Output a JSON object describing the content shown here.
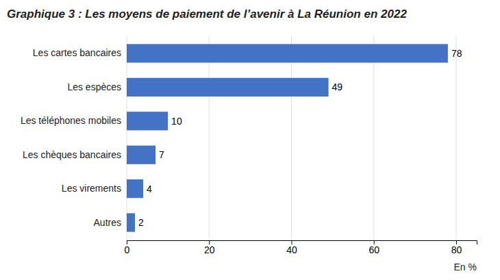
{
  "chart_data": {
    "type": "bar",
    "orientation": "horizontal",
    "title": "Graphique 3 : Les moyens de paiement de l’avenir à La Réunion en 2022",
    "categories": [
      "Les cartes bancaires",
      "Les espèces",
      "Les téléphones mobiles",
      "Les chèques bancaires",
      "Les virements",
      "Autres"
    ],
    "values": [
      78,
      49,
      10,
      7,
      4,
      2
    ],
    "color": "#4472C4",
    "xlabel": "En %",
    "xlim": [
      0,
      85
    ],
    "xticks": [
      0,
      20,
      40,
      60,
      80
    ],
    "grid": true,
    "data_labels": true
  }
}
